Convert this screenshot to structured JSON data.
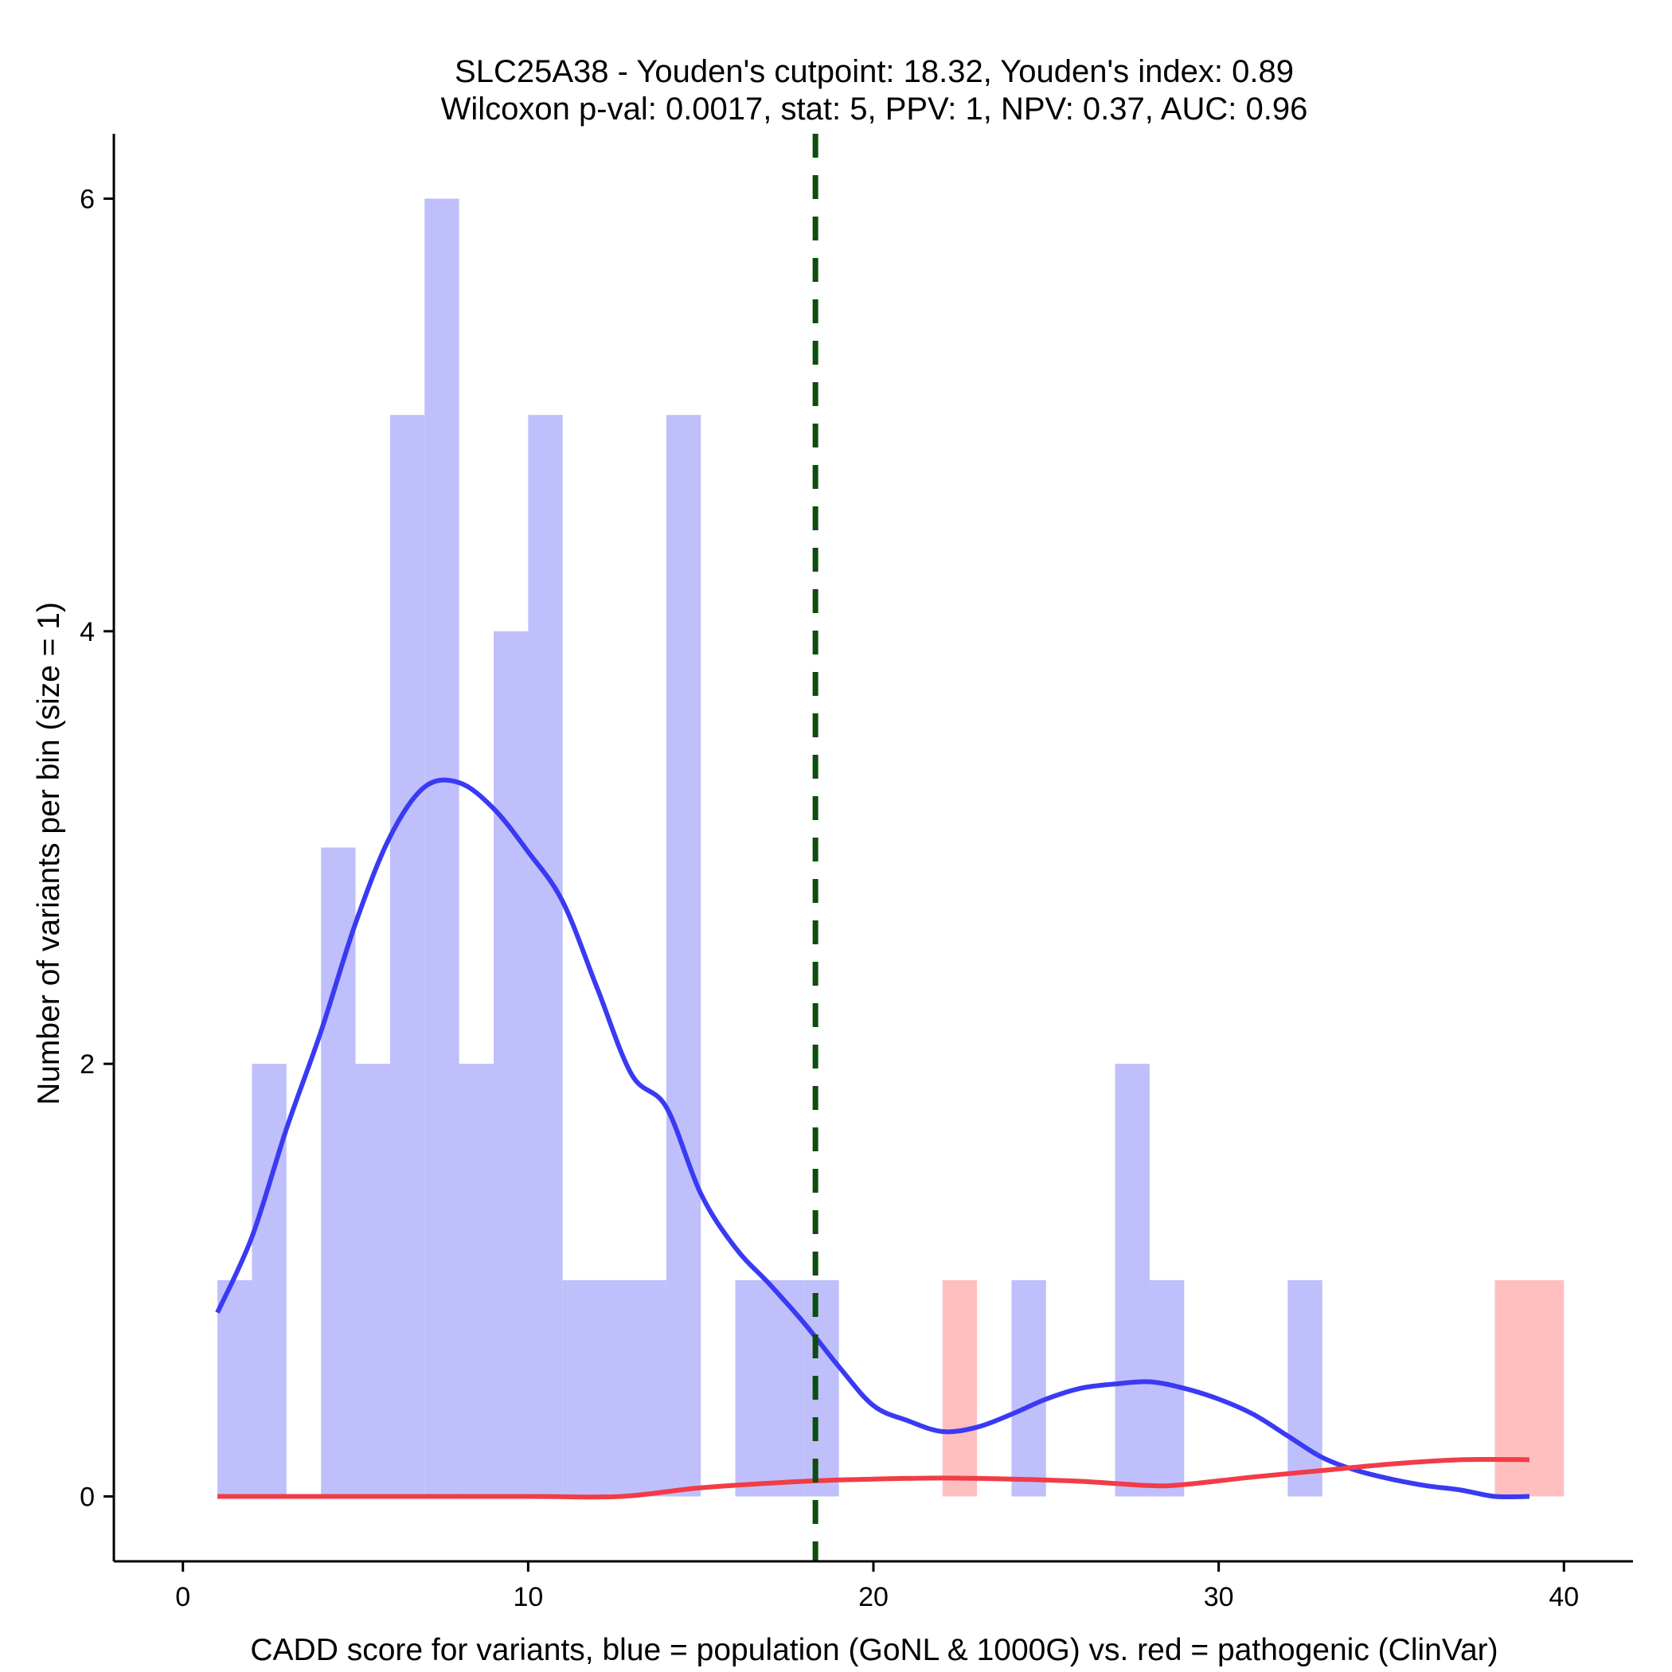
{
  "chart_data": {
    "type": "bar",
    "title_line1": "SLC25A38 - Youden's cutpoint: 18.32, Youden's index: 0.89",
    "title_line2": "Wilcoxon p-val: 0.0017, stat: 5, PPV: 1, NPV: 0.37, AUC: 0.96",
    "xlabel": "CADD score for variants, blue = population (GoNL & 1000G) vs. red = pathogenic (ClinVar)",
    "ylabel": "Number of variants per bin (size = 1)",
    "xlim": [
      -2,
      42
    ],
    "ylim": [
      -0.3,
      6.3
    ],
    "x_ticks": [
      0,
      10,
      20,
      30,
      40
    ],
    "y_ticks": [
      0,
      2,
      4,
      6
    ],
    "cutpoint": 18.32,
    "bin_size": 1,
    "colors": {
      "population_bar": "#bfbffb",
      "pathogenic_bar": "#ffbfbf",
      "population_line": "#3a3af4",
      "pathogenic_line": "#f23c46",
      "cutpoint_line": "#0d4d0d"
    },
    "series": [
      {
        "name": "population (GoNL & 1000G)",
        "bins": [
          {
            "x0": 1,
            "x1": 2,
            "count": 1
          },
          {
            "x0": 2,
            "x1": 3,
            "count": 2
          },
          {
            "x0": 4,
            "x1": 5,
            "count": 3
          },
          {
            "x0": 5,
            "x1": 6,
            "count": 2
          },
          {
            "x0": 6,
            "x1": 7,
            "count": 5
          },
          {
            "x0": 7,
            "x1": 8,
            "count": 6
          },
          {
            "x0": 8,
            "x1": 9,
            "count": 2
          },
          {
            "x0": 9,
            "x1": 10,
            "count": 4
          },
          {
            "x0": 10,
            "x1": 11,
            "count": 5
          },
          {
            "x0": 11,
            "x1": 12,
            "count": 1
          },
          {
            "x0": 12,
            "x1": 13,
            "count": 1
          },
          {
            "x0": 13,
            "x1": 14,
            "count": 1
          },
          {
            "x0": 14,
            "x1": 15,
            "count": 5
          },
          {
            "x0": 16,
            "x1": 17,
            "count": 1
          },
          {
            "x0": 17,
            "x1": 18,
            "count": 1
          },
          {
            "x0": 18,
            "x1": 19,
            "count": 1
          },
          {
            "x0": 24,
            "x1": 25,
            "count": 1
          },
          {
            "x0": 27,
            "x1": 28,
            "count": 2
          },
          {
            "x0": 28,
            "x1": 29,
            "count": 1
          },
          {
            "x0": 32,
            "x1": 33,
            "count": 1
          }
        ],
        "density_curve": {
          "x": [
            1,
            2,
            3,
            4,
            5,
            6,
            7,
            8,
            9,
            10,
            11,
            12,
            13,
            14,
            15,
            16,
            17,
            18,
            19,
            20,
            21,
            22,
            23,
            24,
            25,
            26,
            27,
            28,
            29,
            30,
            31,
            32,
            33,
            34,
            35,
            36,
            37,
            38,
            39
          ],
          "y": [
            0.85,
            1.2,
            1.7,
            2.15,
            2.65,
            3.05,
            3.28,
            3.3,
            3.18,
            2.98,
            2.75,
            2.35,
            1.95,
            1.8,
            1.4,
            1.15,
            0.98,
            0.8,
            0.6,
            0.42,
            0.35,
            0.3,
            0.32,
            0.38,
            0.45,
            0.5,
            0.52,
            0.53,
            0.5,
            0.45,
            0.38,
            0.28,
            0.18,
            0.12,
            0.08,
            0.05,
            0.03,
            0.0,
            0.0
          ]
        }
      },
      {
        "name": "pathogenic (ClinVar)",
        "bins": [
          {
            "x0": 22,
            "x1": 23,
            "count": 1
          },
          {
            "x0": 38,
            "x1": 40,
            "count": 1
          }
        ],
        "density_curve": {
          "x": [
            1,
            5,
            10,
            12.7,
            15,
            18,
            20,
            22,
            24,
            26,
            28,
            29,
            31,
            33,
            35,
            37,
            39
          ],
          "y": [
            0,
            0,
            0,
            0,
            0.04,
            0.07,
            0.08,
            0.085,
            0.08,
            0.07,
            0.05,
            0.055,
            0.09,
            0.12,
            0.15,
            0.17,
            0.17
          ]
        }
      }
    ]
  }
}
